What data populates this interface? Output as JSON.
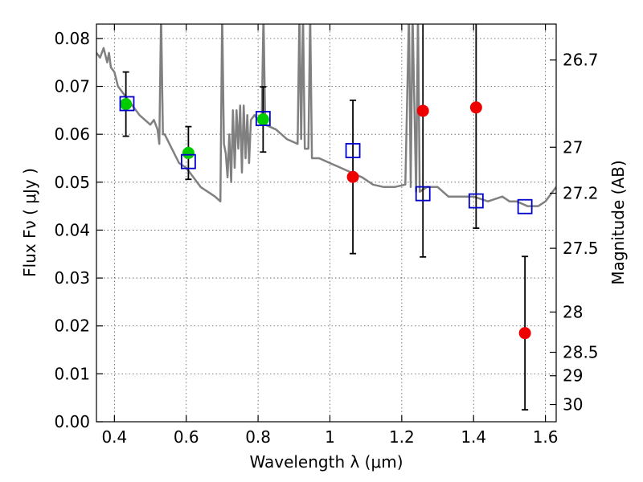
{
  "chart_data": {
    "type": "scatter",
    "xlabel": "Wavelength  λ (μm)",
    "ylabel": "Flux  Fν  ( μJy )",
    "ylabel_right": "Magnitude (AB)",
    "xlim": [
      0.35,
      1.63
    ],
    "ylim": [
      0.0,
      0.083
    ],
    "grid": true,
    "x_ticks": [
      0.4,
      0.6,
      0.8,
      1.0,
      1.2,
      1.4,
      1.6
    ],
    "x_tick_labels": [
      "0.4",
      "0.6",
      "0.8",
      "1",
      "1.2",
      "1.4",
      "1.6"
    ],
    "y_ticks": [
      0.0,
      0.01,
      0.02,
      0.03,
      0.04,
      0.05,
      0.06,
      0.07,
      0.08
    ],
    "y_tick_labels": [
      "0.00",
      "0.01",
      "0.02",
      "0.03",
      "0.04",
      "0.05",
      "0.06",
      "0.07",
      "0.08"
    ],
    "right_ticks": [
      {
        "label": "26.7",
        "flux": 0.0755
      },
      {
        "label": "27",
        "flux": 0.0573
      },
      {
        "label": "27.2",
        "flux": 0.0477
      },
      {
        "label": "27.5",
        "flux": 0.0362
      },
      {
        "label": "28",
        "flux": 0.0229
      },
      {
        "label": "28.5",
        "flux": 0.0145
      },
      {
        "label": "29",
        "flux": 0.0096
      },
      {
        "label": "30",
        "flux": 0.0036
      }
    ],
    "series": [
      {
        "marker": "filled-circle",
        "color": "#00cc00",
        "points": [
          {
            "x": 0.432,
            "y": 0.0663,
            "err": 0.0067
          },
          {
            "x": 0.606,
            "y": 0.0561,
            "err": 0.0055
          },
          {
            "x": 0.814,
            "y": 0.0631,
            "err": 0.0068
          }
        ]
      },
      {
        "marker": "filled-circle",
        "color": "#ee0000",
        "points": [
          {
            "x": 1.064,
            "y": 0.0511,
            "err": 0.016
          },
          {
            "x": 1.259,
            "y": 0.0649,
            "err": 0.0305
          },
          {
            "x": 1.407,
            "y": 0.0656,
            "err": 0.0252
          },
          {
            "x": 1.543,
            "y": 0.0185,
            "err": 0.016
          }
        ]
      },
      {
        "marker": "open-square",
        "color": "#0000cc",
        "points": [
          {
            "x": 0.435,
            "y": 0.0664
          },
          {
            "x": 0.606,
            "y": 0.0543
          },
          {
            "x": 0.814,
            "y": 0.0633
          },
          {
            "x": 1.064,
            "y": 0.0566
          },
          {
            "x": 1.259,
            "y": 0.0476
          },
          {
            "x": 1.407,
            "y": 0.0461
          },
          {
            "x": 1.543,
            "y": 0.0449
          }
        ]
      },
      {
        "type": "line",
        "color": "#808080",
        "x": [
          0.35,
          0.36,
          0.37,
          0.38,
          0.385,
          0.39,
          0.4,
          0.41,
          0.42,
          0.43,
          0.45,
          0.47,
          0.5,
          0.51,
          0.52,
          0.525,
          0.53,
          0.535,
          0.54,
          0.56,
          0.58,
          0.6,
          0.62,
          0.64,
          0.66,
          0.68,
          0.695,
          0.7,
          0.705,
          0.71,
          0.715,
          0.72,
          0.725,
          0.73,
          0.735,
          0.74,
          0.745,
          0.75,
          0.755,
          0.76,
          0.765,
          0.77,
          0.775,
          0.78,
          0.79,
          0.8,
          0.81,
          0.815,
          0.82,
          0.85,
          0.88,
          0.91,
          0.915,
          0.92,
          0.925,
          0.93,
          0.94,
          0.945,
          0.95,
          0.97,
          1.0,
          1.03,
          1.06,
          1.09,
          1.12,
          1.15,
          1.18,
          1.21,
          1.22,
          1.225,
          1.23,
          1.24,
          1.245,
          1.25,
          1.27,
          1.3,
          1.33,
          1.36,
          1.4,
          1.44,
          1.48,
          1.5,
          1.52,
          1.55,
          1.58,
          1.6,
          1.62,
          1.63
        ],
        "y": [
          0.077,
          0.076,
          0.078,
          0.075,
          0.077,
          0.074,
          0.073,
          0.07,
          0.069,
          0.068,
          0.066,
          0.064,
          0.062,
          0.063,
          0.061,
          0.058,
          0.085,
          0.06,
          0.06,
          0.057,
          0.054,
          0.053,
          0.051,
          0.049,
          0.048,
          0.047,
          0.046,
          0.085,
          0.058,
          0.056,
          0.051,
          0.06,
          0.05,
          0.065,
          0.053,
          0.065,
          0.057,
          0.066,
          0.052,
          0.066,
          0.055,
          0.064,
          0.054,
          0.063,
          0.064,
          0.063,
          0.062,
          0.085,
          0.062,
          0.061,
          0.059,
          0.058,
          0.085,
          0.059,
          0.085,
          0.057,
          0.057,
          0.085,
          0.055,
          0.055,
          0.054,
          0.053,
          0.052,
          0.051,
          0.0495,
          0.049,
          0.049,
          0.0495,
          0.085,
          0.049,
          0.085,
          0.048,
          0.085,
          0.048,
          0.049,
          0.049,
          0.047,
          0.047,
          0.047,
          0.046,
          0.047,
          0.046,
          0.046,
          0.045,
          0.045,
          0.046,
          0.048,
          0.049
        ]
      }
    ]
  }
}
